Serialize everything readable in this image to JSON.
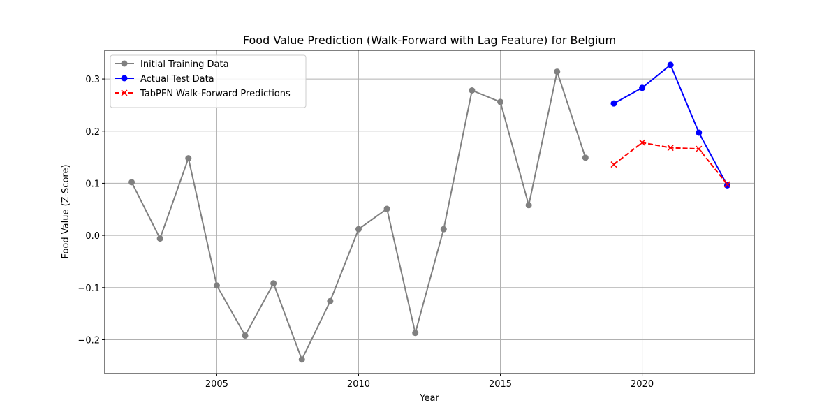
{
  "chart_data": {
    "type": "line",
    "title": "Food Value Prediction (Walk-Forward with Lag Feature) for Belgium",
    "xlabel": "Year",
    "ylabel": "Food Value (Z-Score)",
    "xlim": [
      2001.05,
      2023.95
    ],
    "ylim": [
      -0.265,
      0.355
    ],
    "xticks": [
      2005,
      2010,
      2015,
      2020
    ],
    "xtick_labels": [
      "2005",
      "2010",
      "2015",
      "2020"
    ],
    "yticks": [
      -0.2,
      -0.1,
      0.0,
      0.1,
      0.2,
      0.3
    ],
    "ytick_labels": [
      "−0.2",
      "−0.1",
      "0.0",
      "0.1",
      "0.2",
      "0.3"
    ],
    "grid": true,
    "legend_position": "top-left",
    "series": [
      {
        "name": "Initial Training Data",
        "color": "#808080",
        "marker": "circle",
        "linestyle": "solid",
        "x": [
          2002,
          2003,
          2004,
          2005,
          2006,
          2007,
          2008,
          2009,
          2010,
          2011,
          2012,
          2013,
          2014,
          2015,
          2016,
          2017,
          2018
        ],
        "y": [
          0.102,
          -0.006,
          0.148,
          -0.096,
          -0.192,
          -0.092,
          -0.238,
          -0.126,
          0.012,
          0.051,
          -0.187,
          0.012,
          0.278,
          0.256,
          0.058,
          0.314,
          0.149
        ]
      },
      {
        "name": "Actual Test Data",
        "color": "#0000ff",
        "marker": "circle",
        "linestyle": "solid",
        "x": [
          2019,
          2020,
          2021,
          2022,
          2023
        ],
        "y": [
          0.253,
          0.283,
          0.327,
          0.197,
          0.096
        ]
      },
      {
        "name": "TabPFN Walk-Forward Predictions",
        "color": "#ff0000",
        "marker": "x",
        "linestyle": "dashed",
        "x": [
          2019,
          2020,
          2021,
          2022,
          2023
        ],
        "y": [
          0.136,
          0.178,
          0.168,
          0.166,
          0.098
        ]
      }
    ]
  }
}
